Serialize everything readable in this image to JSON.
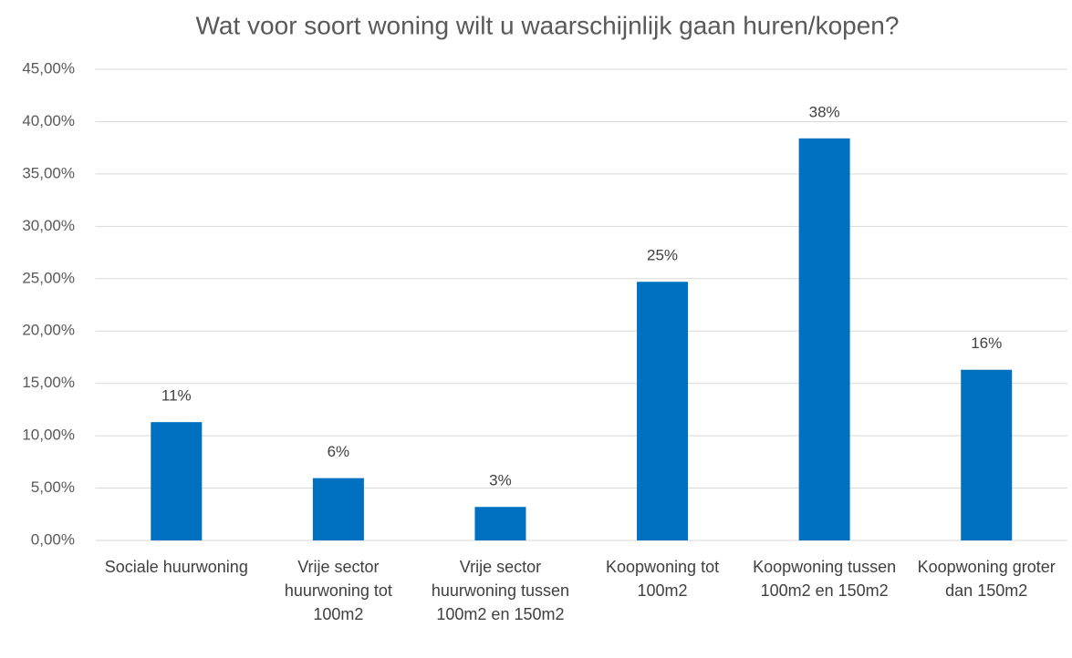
{
  "chart_data": {
    "type": "bar",
    "title": "Wat voor soort woning wilt u waarschijnlijk gaan huren/kopen?",
    "categories": [
      "Sociale huurwoning",
      "Vrije sector huurwoning tot 100m2",
      "Vrije sector huurwoning tussen 100m2 en 150m2",
      "Koopwoning tot 100m2",
      "Koopwoning tussen 100m2 en 150m2",
      "Koopwoning groter dan 150m2"
    ],
    "values": [
      11.3,
      5.95,
      3.2,
      24.7,
      38.4,
      16.3
    ],
    "value_labels": [
      "11%",
      "6%",
      "3%",
      "25%",
      "38%",
      "16%"
    ],
    "color": "#0070c0",
    "ylim": [
      0,
      45
    ],
    "yticks": [
      {
        "value": 0,
        "label": "0,00%"
      },
      {
        "value": 5,
        "label": "5,00%"
      },
      {
        "value": 10,
        "label": "10,00%"
      },
      {
        "value": 15,
        "label": "15,00%"
      },
      {
        "value": 20,
        "label": "20,00%"
      },
      {
        "value": 25,
        "label": "25,00%"
      },
      {
        "value": 30,
        "label": "30,00%"
      },
      {
        "value": 35,
        "label": "35,00%"
      },
      {
        "value": 40,
        "label": "40,00%"
      },
      {
        "value": 45,
        "label": "45,00%"
      }
    ],
    "grid": true
  }
}
